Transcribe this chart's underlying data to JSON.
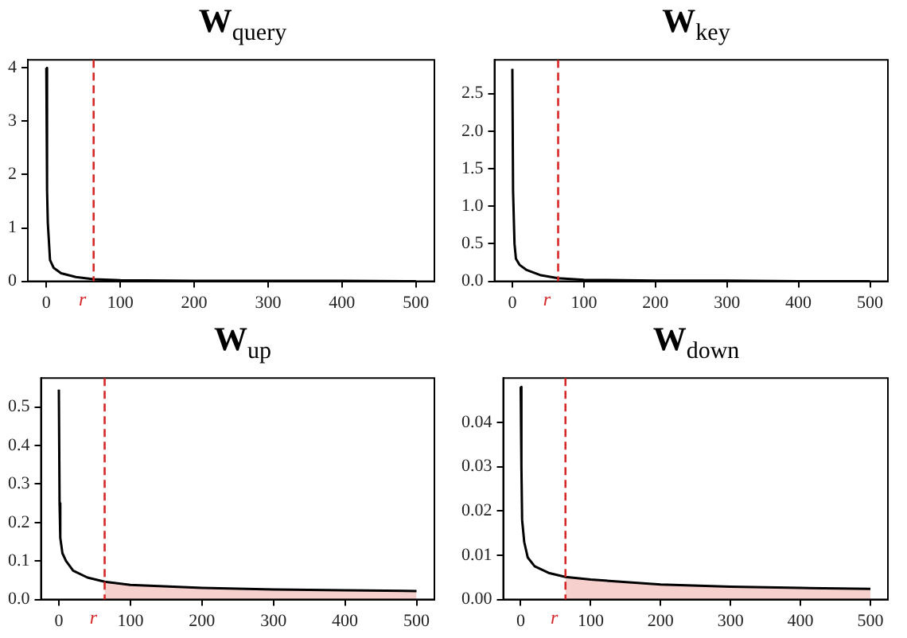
{
  "chart_data": [
    {
      "type": "line",
      "title": "W$_{query}$",
      "x": [
        0,
        1,
        2,
        5,
        10,
        20,
        40,
        64,
        100,
        200,
        300,
        400,
        500
      ],
      "xlim": [
        -25,
        525
      ],
      "xticks": [
        0,
        100,
        200,
        300,
        400,
        500
      ],
      "ylim": [
        0,
        4.15
      ],
      "yticks": [
        0,
        1,
        2,
        3,
        4
      ],
      "grid": false,
      "legend": false,
      "series": [
        {
          "color": "#000000",
          "values": [
            4.0,
            1.7,
            1.1,
            0.4,
            0.25,
            0.15,
            0.08,
            0.04,
            0.02,
            0.01,
            0.01,
            0.01,
            0.0
          ]
        }
      ],
      "ref_lines": [
        {
          "axis": "x",
          "value": 64,
          "label": "r",
          "color": "#d62728",
          "line_style": "dashed"
        }
      ]
    },
    {
      "type": "line",
      "title": "W$_{key}$",
      "x": [
        0,
        1,
        3,
        5,
        10,
        20,
        40,
        64,
        100,
        200,
        300,
        400,
        500
      ],
      "xlim": [
        -25,
        525
      ],
      "xticks": [
        0,
        100,
        200,
        300,
        400,
        500
      ],
      "ylim": [
        0,
        2.95
      ],
      "yticks": [
        {
          "value": 0,
          "label": "0.0"
        },
        0.5,
        {
          "value": 1,
          "label": "1.0"
        },
        1.5,
        {
          "value": 2,
          "label": "2.0"
        },
        2.5
      ],
      "grid": false,
      "legend": false,
      "series": [
        {
          "color": "#000000",
          "values": [
            2.83,
            1.2,
            0.5,
            0.3,
            0.22,
            0.15,
            0.08,
            0.04,
            0.02,
            0.01,
            0.01,
            0.0,
            0.0
          ]
        }
      ],
      "ref_lines": [
        {
          "axis": "x",
          "value": 64,
          "label": "r",
          "color": "#d62728",
          "line_style": "dashed"
        }
      ]
    },
    {
      "type": "line",
      "title": "W$_{up}$",
      "x": [
        0,
        1,
        2,
        5,
        10,
        20,
        40,
        64,
        100,
        200,
        300,
        400,
        500
      ],
      "xlim": [
        -25,
        525
      ],
      "xticks": [
        0,
        100,
        200,
        300,
        400,
        500
      ],
      "ylim": [
        0,
        0.575
      ],
      "yticks": [
        {
          "value": 0,
          "label": "0.0"
        },
        0.1,
        0.2,
        0.3,
        0.4,
        0.5
      ],
      "grid": false,
      "legend": false,
      "series": [
        {
          "type": "area",
          "color": "#f6d0cc",
          "x": [
            64,
            100,
            200,
            300,
            400,
            500
          ],
          "values": [
            0.046,
            0.038,
            0.03,
            0.026,
            0.024,
            0.022
          ]
        },
        {
          "color": "#000000",
          "values": [
            0.545,
            0.25,
            0.16,
            0.12,
            0.1,
            0.075,
            0.057,
            0.046,
            0.038,
            0.03,
            0.026,
            0.024,
            0.022
          ]
        }
      ],
      "ref_lines": [
        {
          "axis": "x",
          "value": 64,
          "label": "r",
          "color": "#d62728",
          "line_style": "dashed"
        }
      ]
    },
    {
      "type": "line",
      "title": "W$_{down}$",
      "x": [
        0,
        1,
        2,
        5,
        10,
        20,
        40,
        64,
        100,
        200,
        300,
        400,
        500
      ],
      "xlim": [
        -25,
        525
      ],
      "xticks": [
        0,
        100,
        200,
        300,
        400,
        500
      ],
      "ylim": [
        0,
        0.05
      ],
      "yticks": [
        {
          "value": 0,
          "label": "0.00"
        },
        0.01,
        0.02,
        0.03,
        0.04
      ],
      "grid": false,
      "legend": false,
      "series": [
        {
          "type": "area",
          "color": "#f6d0cc",
          "x": [
            64,
            100,
            200,
            300,
            400,
            500
          ],
          "values": [
            0.0051,
            0.0045,
            0.0034,
            0.0029,
            0.0026,
            0.0024
          ]
        },
        {
          "color": "#000000",
          "values": [
            0.048,
            0.03,
            0.018,
            0.013,
            0.0095,
            0.0075,
            0.006,
            0.0051,
            0.0045,
            0.0034,
            0.0029,
            0.0026,
            0.0024
          ]
        }
      ],
      "ref_lines": [
        {
          "axis": "x",
          "value": 64,
          "label": "r",
          "color": "#d62728",
          "line_style": "dashed"
        }
      ]
    }
  ]
}
